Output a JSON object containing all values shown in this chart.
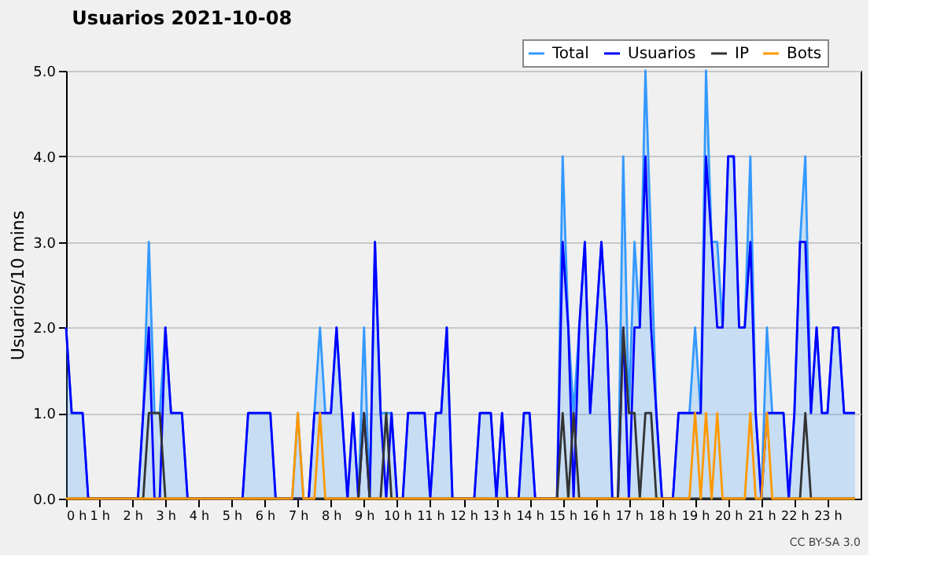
{
  "chart_data": {
    "type": "line",
    "title": "Usuarios  2021-10-08",
    "ylabel": "Usuarios/10 mins",
    "annotations": [
      "CC BY-SA 3.0"
    ],
    "x": [
      0,
      0.17,
      0.33,
      0.5,
      0.67,
      0.83,
      1,
      1.17,
      1.33,
      1.5,
      1.67,
      1.83,
      2,
      2.17,
      2.33,
      2.5,
      2.67,
      2.83,
      3,
      3.17,
      3.33,
      3.5,
      3.67,
      3.83,
      4,
      4.17,
      4.33,
      4.5,
      4.67,
      4.83,
      5,
      5.17,
      5.33,
      5.5,
      5.67,
      5.83,
      6,
      6.17,
      6.33,
      6.5,
      6.67,
      6.83,
      7,
      7.17,
      7.33,
      7.5,
      7.67,
      7.83,
      8,
      8.17,
      8.33,
      8.5,
      8.67,
      8.83,
      9,
      9.17,
      9.33,
      9.5,
      9.67,
      9.83,
      10,
      10.17,
      10.33,
      10.5,
      10.67,
      10.83,
      11,
      11.17,
      11.33,
      11.5,
      11.67,
      11.83,
      12,
      12.17,
      12.33,
      12.5,
      12.67,
      12.83,
      13,
      13.17,
      13.33,
      13.5,
      13.67,
      13.83,
      14,
      14.17,
      14.33,
      14.5,
      14.67,
      14.83,
      15,
      15.17,
      15.33,
      15.5,
      15.67,
      15.83,
      16,
      16.17,
      16.33,
      16.5,
      16.67,
      16.83,
      17,
      17.17,
      17.33,
      17.5,
      17.67,
      17.83,
      18,
      18.17,
      18.33,
      18.5,
      18.67,
      18.83,
      19,
      19.17,
      19.33,
      19.5,
      19.67,
      19.83,
      20,
      20.17,
      20.33,
      20.5,
      20.67,
      20.83,
      21,
      21.17,
      21.33,
      21.5,
      21.67,
      21.83,
      22,
      22.17,
      22.33,
      22.5,
      22.67,
      22.83,
      23,
      23.17,
      23.33,
      23.5,
      23.67,
      23.83
    ],
    "series": [
      {
        "name": "Total",
        "type": "area",
        "color": "#3399ff",
        "values": [
          2,
          1,
          1,
          1,
          0,
          0,
          0,
          0,
          0,
          0,
          0,
          0,
          0,
          0,
          1,
          3,
          1,
          1,
          2,
          1,
          1,
          1,
          0,
          0,
          0,
          0,
          0,
          0,
          0,
          0,
          0,
          0,
          0,
          1,
          1,
          1,
          1,
          1,
          0,
          0,
          0,
          0,
          1,
          0,
          0,
          1,
          2,
          1,
          1,
          2,
          1,
          0,
          1,
          0,
          2,
          0,
          3,
          1,
          1,
          1,
          0,
          0,
          1,
          1,
          1,
          1,
          0,
          1,
          1,
          2,
          0,
          0,
          0,
          0,
          0,
          1,
          1,
          1,
          0,
          1,
          0,
          0,
          0,
          1,
          1,
          0,
          0,
          0,
          0,
          0,
          4,
          2,
          1,
          2,
          3,
          1,
          2,
          3,
          2,
          0,
          0,
          4,
          1,
          3,
          2,
          5,
          3,
          1,
          0,
          0,
          0,
          1,
          1,
          1,
          2,
          1,
          5,
          3,
          3,
          2,
          4,
          4,
          2,
          2,
          4,
          1,
          0,
          2,
          1,
          1,
          1,
          0,
          1,
          3,
          4,
          1,
          2,
          1,
          1,
          2,
          2,
          1,
          1,
          1
        ]
      },
      {
        "name": "Usuarios",
        "type": "line",
        "color": "#0000ff",
        "values": [
          2,
          1,
          1,
          1,
          0,
          0,
          0,
          0,
          0,
          0,
          0,
          0,
          0,
          0,
          1,
          2,
          0,
          0,
          2,
          1,
          1,
          1,
          0,
          0,
          0,
          0,
          0,
          0,
          0,
          0,
          0,
          0,
          0,
          1,
          1,
          1,
          1,
          1,
          0,
          0,
          0,
          0,
          0,
          0,
          0,
          1,
          1,
          1,
          1,
          2,
          1,
          0,
          1,
          0,
          1,
          0,
          3,
          1,
          0,
          1,
          0,
          0,
          1,
          1,
          1,
          1,
          0,
          1,
          1,
          2,
          0,
          0,
          0,
          0,
          0,
          1,
          1,
          1,
          0,
          1,
          0,
          0,
          0,
          1,
          1,
          0,
          0,
          0,
          0,
          0,
          3,
          2,
          0,
          2,
          3,
          1,
          2,
          3,
          2,
          0,
          0,
          2,
          0,
          2,
          2,
          4,
          2,
          1,
          0,
          0,
          0,
          1,
          1,
          1,
          1,
          1,
          4,
          3,
          2,
          2,
          4,
          4,
          2,
          2,
          3,
          1,
          0,
          1,
          1,
          1,
          1,
          0,
          1,
          3,
          3,
          1,
          2,
          1,
          1,
          2,
          2,
          1,
          1,
          1
        ]
      },
      {
        "name": "IP",
        "type": "line",
        "color": "#333333",
        "values": [
          0,
          0,
          0,
          0,
          0,
          0,
          0,
          0,
          0,
          0,
          0,
          0,
          0,
          0,
          0,
          1,
          1,
          1,
          0,
          0,
          0,
          0,
          0,
          0,
          0,
          0,
          0,
          0,
          0,
          0,
          0,
          0,
          0,
          0,
          0,
          0,
          0,
          0,
          0,
          0,
          0,
          0,
          0,
          0,
          0,
          0,
          0,
          0,
          0,
          0,
          0,
          0,
          0,
          0,
          1,
          0,
          0,
          0,
          1,
          0,
          0,
          0,
          0,
          0,
          0,
          0,
          0,
          0,
          0,
          0,
          0,
          0,
          0,
          0,
          0,
          0,
          0,
          0,
          0,
          0,
          0,
          0,
          0,
          0,
          0,
          0,
          0,
          0,
          0,
          0,
          1,
          0,
          1,
          0,
          0,
          0,
          0,
          0,
          0,
          0,
          0,
          2,
          1,
          1,
          0,
          1,
          1,
          0,
          0,
          0,
          0,
          0,
          0,
          0,
          0,
          0,
          0,
          0,
          0,
          0,
          0,
          0,
          0,
          0,
          0,
          0,
          0,
          0,
          0,
          0,
          0,
          0,
          0,
          0,
          1,
          0,
          0,
          0,
          0,
          0,
          0,
          0,
          0,
          0
        ]
      },
      {
        "name": "Bots",
        "type": "line",
        "color": "#ff9900",
        "values": [
          0,
          0,
          0,
          0,
          0,
          0,
          0,
          0,
          0,
          0,
          0,
          0,
          0,
          0,
          0,
          0,
          0,
          0,
          0,
          0,
          0,
          0,
          0,
          0,
          0,
          0,
          0,
          0,
          0,
          0,
          0,
          0,
          0,
          0,
          0,
          0,
          0,
          0,
          0,
          0,
          0,
          0,
          1,
          0,
          0,
          0,
          1,
          0,
          0,
          0,
          0,
          0,
          0,
          0,
          0,
          0,
          0,
          0,
          0,
          0,
          0,
          0,
          0,
          0,
          0,
          0,
          0,
          0,
          0,
          0,
          0,
          0,
          0,
          0,
          0,
          0,
          0,
          0,
          0,
          0,
          0,
          0,
          0,
          0,
          0,
          0,
          0,
          0,
          0,
          0,
          0,
          0,
          0,
          0,
          0,
          0,
          0,
          0,
          0,
          0,
          0,
          0,
          0,
          0,
          0,
          0,
          0,
          0,
          0,
          0,
          0,
          0,
          0,
          0,
          1,
          0,
          1,
          0,
          1,
          0,
          0,
          0,
          0,
          0,
          1,
          0,
          0,
          1,
          0,
          0,
          0,
          0,
          0,
          0,
          0,
          0,
          0,
          0,
          0,
          0,
          0,
          0,
          0,
          0
        ]
      }
    ],
    "xlim": [
      0,
      24
    ],
    "xticks": [
      {
        "value": 0,
        "label": "0 h"
      },
      {
        "value": 1,
        "label": "1 h"
      },
      {
        "value": 2,
        "label": "2 h"
      },
      {
        "value": 3,
        "label": "3 h"
      },
      {
        "value": 4,
        "label": "4 h"
      },
      {
        "value": 5,
        "label": "5 h"
      },
      {
        "value": 6,
        "label": "6 h"
      },
      {
        "value": 7,
        "label": "7 h"
      },
      {
        "value": 8,
        "label": "8 h"
      },
      {
        "value": 9,
        "label": "9 h"
      },
      {
        "value": 10,
        "label": "10 h"
      },
      {
        "value": 11,
        "label": "11 h"
      },
      {
        "value": 12,
        "label": "12 h"
      },
      {
        "value": 13,
        "label": "13 h"
      },
      {
        "value": 14,
        "label": "14 h"
      },
      {
        "value": 15,
        "label": "15 h"
      },
      {
        "value": 16,
        "label": "16 h"
      },
      {
        "value": 17,
        "label": "17 h"
      },
      {
        "value": 18,
        "label": "18 h"
      },
      {
        "value": 19,
        "label": "19 h"
      },
      {
        "value": 20,
        "label": "20 h"
      },
      {
        "value": 21,
        "label": "21 h"
      },
      {
        "value": 22,
        "label": "22 h"
      },
      {
        "value": 23,
        "label": "23 h"
      }
    ],
    "ylim": [
      0,
      5
    ],
    "yticks": [
      {
        "value": 0,
        "label": "0.0"
      },
      {
        "value": 1,
        "label": "1.0"
      },
      {
        "value": 2,
        "label": "2.0"
      },
      {
        "value": 3,
        "label": "3.0"
      },
      {
        "value": 4,
        "label": "4.0"
      },
      {
        "value": 5,
        "label": "5.0"
      }
    ],
    "grid": "y",
    "legend": "top right",
    "marker": "none",
    "line_style": "solid"
  }
}
